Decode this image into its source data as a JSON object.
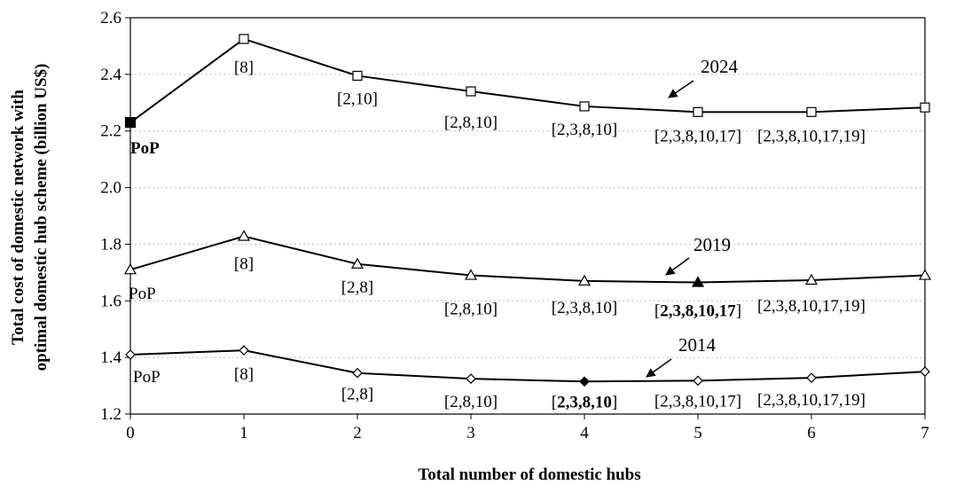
{
  "chart_data": {
    "type": "line",
    "title": "",
    "xlabel": "Total number of domestic hubs",
    "ylabel_lines": [
      "Total cost of domestic network with",
      "optimal domestic hub scheme (billion US$)"
    ],
    "x": [
      0,
      1,
      2,
      3,
      4,
      5,
      6,
      7
    ],
    "xlim": [
      0,
      7
    ],
    "ylim": [
      1.2,
      2.6
    ],
    "yticks": [
      "1.2",
      "1.4",
      "1.6",
      "1.8",
      "2.0",
      "2.2",
      "2.4",
      "2.6"
    ],
    "grid": "horizontal dotted",
    "series": [
      {
        "name": "2024",
        "marker": "square",
        "values": [
          2.23,
          2.525,
          2.395,
          2.34,
          2.287,
          2.267,
          2.267,
          2.283
        ],
        "highlight_index": 0,
        "point_labels": [
          "PoP",
          "[8]",
          "[2,10]",
          "[2,8,10]",
          "[2,3,8,10]",
          "[2,3,8,10,17]",
          "[2,3,8,10,17,19]",
          ""
        ],
        "bold_label_index": 0
      },
      {
        "name": "2019",
        "marker": "triangle",
        "values": [
          1.71,
          1.828,
          1.73,
          1.69,
          1.67,
          1.665,
          1.673,
          1.69
        ],
        "highlight_index": 5,
        "point_labels": [
          "PoP",
          "[8]",
          "[2,8]",
          "[2,8,10]",
          "[2,3,8,10]",
          "[2,3,8,10,17]",
          "[2,3,8,10,17,19]",
          ""
        ],
        "bold_label_index": 5
      },
      {
        "name": "2014",
        "marker": "diamond",
        "values": [
          1.41,
          1.425,
          1.345,
          1.325,
          1.315,
          1.318,
          1.328,
          1.35
        ],
        "highlight_index": 4,
        "point_labels": [
          "PoP",
          "[8]",
          "[2,8]",
          "[2,8,10]",
          "[2,3,8,10]",
          "[2,3,8,10,17]",
          "[2,3,8,10,17,19]",
          ""
        ],
        "bold_label_index": 4
      }
    ]
  }
}
